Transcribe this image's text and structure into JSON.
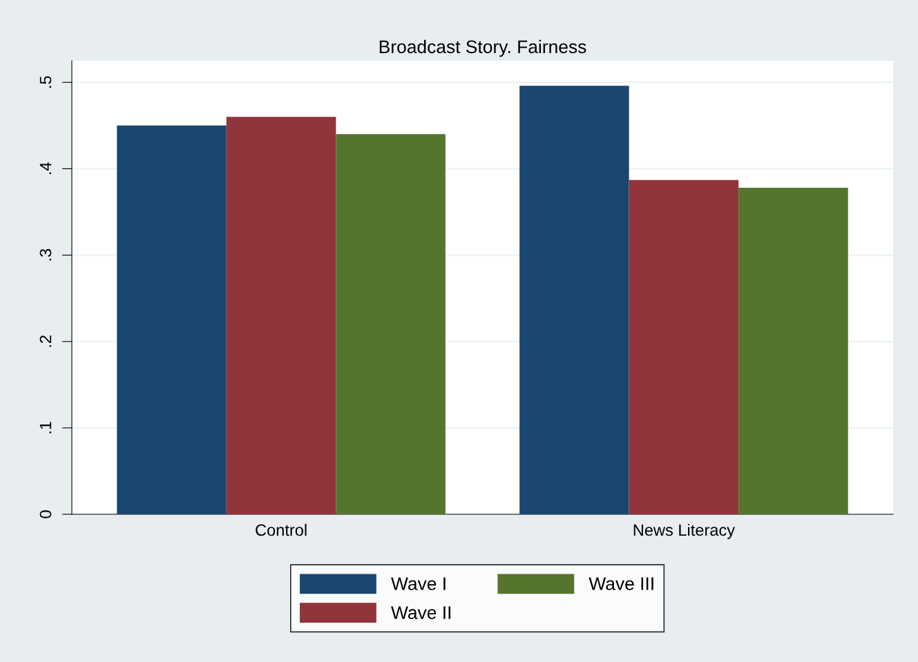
{
  "chart_data": {
    "type": "bar",
    "title": "Broadcast Story. Fairness",
    "categories": [
      "Control",
      "News Literacy"
    ],
    "series": [
      {
        "name": "Wave I",
        "color": "#1a476f",
        "values": [
          0.45,
          0.496
        ]
      },
      {
        "name": "Wave II",
        "color": "#90353b",
        "values": [
          0.46,
          0.387
        ]
      },
      {
        "name": "Wave III",
        "color": "#55752f",
        "values": [
          0.44,
          0.378
        ]
      }
    ],
    "ylim": [
      0,
      0.525
    ],
    "yticks": [
      {
        "value": 0,
        "label": "0"
      },
      {
        "value": 0.1,
        "label": ".1"
      },
      {
        "value": 0.2,
        "label": ".2"
      },
      {
        "value": 0.3,
        "label": ".3"
      },
      {
        "value": 0.4,
        "label": ".4"
      },
      {
        "value": 0.5,
        "label": ".5"
      }
    ],
    "grid": "y",
    "legend": "bottom"
  }
}
